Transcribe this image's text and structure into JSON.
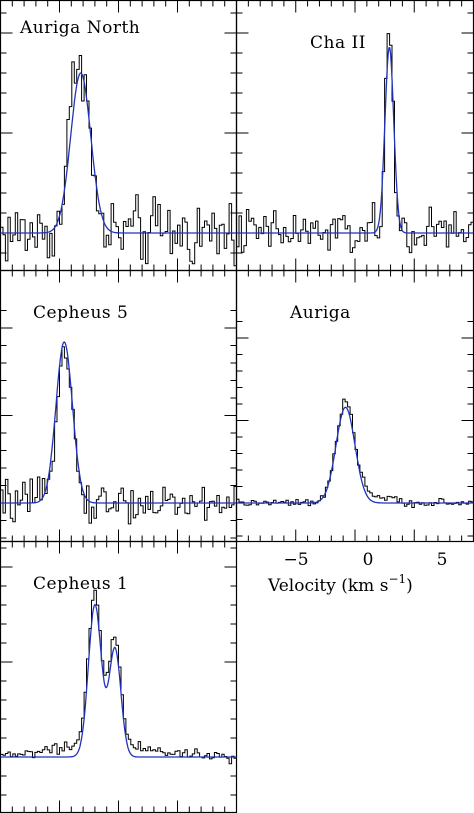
{
  "chart_data": [
    {
      "type": "line",
      "title": "Auriga North",
      "xlabel": "",
      "ylabel": "",
      "xlim": [
        -10,
        10
      ],
      "ylim": [
        -0.2,
        1.15
      ],
      "series": [
        {
          "kind": "step-data",
          "center": -3.4,
          "sigma": 0.75,
          "amp": 0.88,
          "noise": 0.085,
          "bump": {
            "center": -2.6,
            "sigma": 0.5,
            "amp": 0.12
          }
        },
        {
          "kind": "gaussian-fit",
          "center": -3.2,
          "sigma": 0.85,
          "amp": 0.8,
          "baseline": 0.0
        }
      ]
    },
    {
      "type": "line",
      "title": "Cha II",
      "xlabel": "",
      "ylabel": "",
      "xlim": [
        -10,
        10
      ],
      "ylim": [
        -0.2,
        1.15
      ],
      "series": [
        {
          "kind": "step-data",
          "center": 2.9,
          "sigma": 0.35,
          "amp": 0.96,
          "noise": 0.06
        },
        {
          "kind": "gaussian-fit",
          "center": 2.9,
          "sigma": 0.37,
          "amp": 0.93,
          "baseline": 0.0
        }
      ]
    },
    {
      "type": "line",
      "title": "Cepheus 5",
      "xlabel": "",
      "ylabel": "",
      "xlim": [
        -10,
        10
      ],
      "ylim": [
        -0.2,
        1.15
      ],
      "series": [
        {
          "kind": "step-data",
          "center": -4.6,
          "sigma": 0.65,
          "amp": 0.94,
          "noise": 0.055
        },
        {
          "kind": "gaussian-fit",
          "center": -4.6,
          "sigma": 0.7,
          "amp": 0.92,
          "baseline": 0.0
        }
      ]
    },
    {
      "type": "line",
      "title": "Auriga",
      "xlabel": "Velocity (km s⁻¹)",
      "ylabel": "",
      "xlim": [
        -10,
        10
      ],
      "ylim": [
        -0.2,
        1.15
      ],
      "xticks": [
        -5,
        0,
        5
      ],
      "series": [
        {
          "kind": "step-data",
          "center": -0.8,
          "sigma": 0.78,
          "amp": 0.58,
          "noise": 0.012,
          "wing": {
            "center": 0.9,
            "sigma": 1.6,
            "amp": 0.05
          }
        },
        {
          "kind": "gaussian-fit",
          "center": -0.8,
          "sigma": 0.8,
          "amp": 0.58,
          "baseline": 0.0
        }
      ]
    },
    {
      "type": "line",
      "title": "Cepheus 1",
      "xlabel": "",
      "ylabel": "",
      "xlim": [
        -10,
        10
      ],
      "ylim": [
        -0.2,
        1.15
      ],
      "series": [
        {
          "kind": "step-data",
          "components": [
            {
              "center": -2.0,
              "sigma": 0.55,
              "amp": 0.82
            },
            {
              "center": -0.3,
              "sigma": 0.5,
              "amp": 0.57
            }
          ],
          "noise": 0.015,
          "wing": {
            "center": -1.0,
            "sigma": 4.5,
            "amp": 0.06
          }
        },
        {
          "kind": "gaussian-fit",
          "components": [
            {
              "center": -2.0,
              "sigma": 0.55,
              "amp": 0.8
            },
            {
              "center": -0.3,
              "sigma": 0.5,
              "amp": 0.57
            }
          ],
          "baseline": 0.0
        }
      ]
    }
  ],
  "panels": {
    "p1": {
      "label": "Auriga North"
    },
    "p2": {
      "label": "Cha II"
    },
    "p3": {
      "label": "Cepheus 5"
    },
    "p4": {
      "label": "Auriga"
    },
    "p5": {
      "label": "Cepheus 1"
    }
  },
  "axis": {
    "tick_labels": [
      "−5",
      "0",
      "5"
    ],
    "xlabel_text": "Velocity (km s",
    "xlabel_exp": "−1",
    "xlabel_close": ")"
  },
  "colors": {
    "data": "#000000",
    "fit": "#2233bb"
  }
}
